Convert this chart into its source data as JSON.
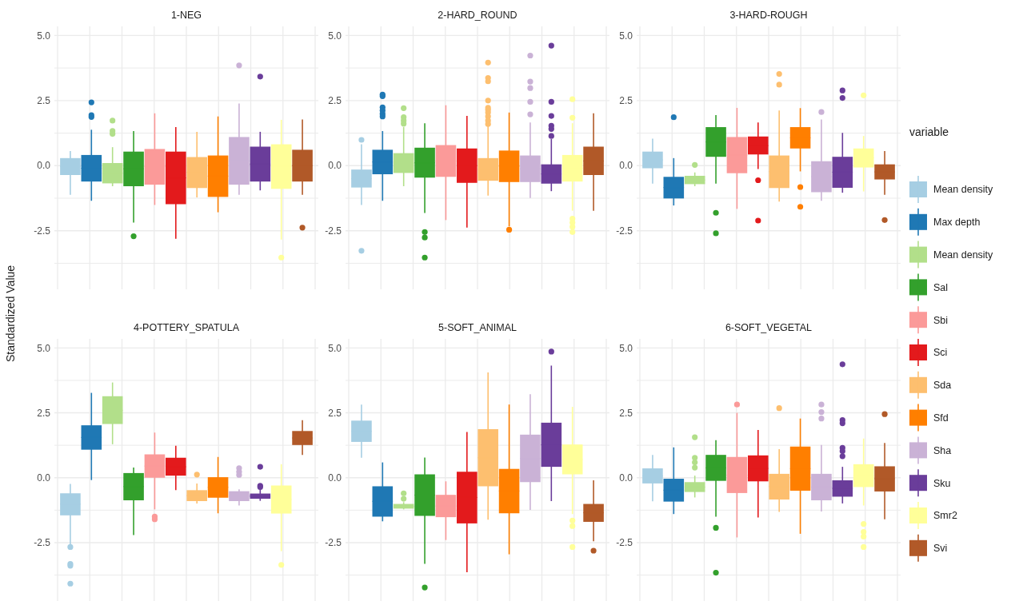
{
  "chart_data": [
    {
      "type": "box",
      "title": "1-NEG",
      "ylabel": "Standardized Value",
      "categories": [
        null
      ],
      "ylim": [
        -4.75,
        5.35
      ],
      "yticks": [
        {
          "value": -3.75,
          "label": null
        },
        {
          "value": -2.5,
          "label": "-2.5"
        },
        {
          "value": -1.25,
          "label": null
        },
        {
          "value": 0,
          "label": "0.0"
        },
        {
          "value": 1.25,
          "label": null
        },
        {
          "value": 2.5,
          "label": "2.5"
        },
        {
          "value": 3.75,
          "label": null
        },
        {
          "value": 5,
          "label": "5.0"
        }
      ],
      "grid": true,
      "tick_labels": "y",
      "legend": "right",
      "legend_title": "variable",
      "series": [
        {
          "name": "Mean density",
          "color": "#a6cee3",
          "boxes": [
            {
              "low": -1.12,
              "q1": -0.36,
              "median": -0.03,
              "q3": 0.29,
              "high": 0.56
            }
          ]
        },
        {
          "name": "Max depth",
          "color": "#1f78b4",
          "boxes": [
            {
              "low": -1.35,
              "q1": -0.61,
              "median": -0.1,
              "q3": 0.41,
              "high": 1.38,
              "outliers": [
                2.43,
                1.94,
                1.87
              ]
            }
          ]
        },
        {
          "name": "Mean density",
          "color": "#b2df8a",
          "boxes": [
            {
              "low": -0.79,
              "q1": -0.68,
              "median": -0.29,
              "q3": 0.1,
              "high": 0.71,
              "outliers": [
                1.73,
                1.33,
                1.22
              ]
            }
          ]
        },
        {
          "name": "Sal",
          "color": "#33a02c",
          "boxes": [
            {
              "low": -2.19,
              "q1": -0.79,
              "median": -0.12,
              "q3": 0.54,
              "high": 1.33,
              "outliers": [
                -2.71
              ]
            }
          ]
        },
        {
          "name": "Sbi",
          "color": "#fb9a99",
          "boxes": [
            {
              "low": -1.51,
              "q1": -0.73,
              "median": -0.04,
              "q3": 0.64,
              "high": 2.01
            }
          ]
        },
        {
          "name": "Sci",
          "color": "#e31a1c",
          "boxes": [
            {
              "low": -2.81,
              "q1": -1.48,
              "median": -0.47,
              "q3": 0.54,
              "high": 1.48
            }
          ]
        },
        {
          "name": "Sda",
          "color": "#fdbf6f",
          "boxes": [
            {
              "low": -1.22,
              "q1": -0.86,
              "median": -0.26,
              "q3": 0.33,
              "high": 1.3
            }
          ]
        },
        {
          "name": "Sfd",
          "color": "#ff7f00",
          "boxes": [
            {
              "low": -1.79,
              "q1": -1.2,
              "median": -0.4,
              "q3": 0.39,
              "high": 1.89
            }
          ]
        },
        {
          "name": "Sha",
          "color": "#cab2d6",
          "boxes": [
            {
              "low": -1.12,
              "q1": -0.73,
              "median": 0.18,
              "q3": 1.1,
              "high": 2.39,
              "outliers": [
                3.85
              ]
            }
          ]
        },
        {
          "name": "Sku",
          "color": "#6a3d9a",
          "boxes": [
            {
              "low": -0.95,
              "q1": -0.61,
              "median": 0.06,
              "q3": 0.73,
              "high": 1.3,
              "outliers": [
                3.42
              ]
            }
          ]
        },
        {
          "name": "Smr2",
          "color": "#ffff99",
          "boxes": [
            {
              "low": -2.84,
              "q1": -0.89,
              "median": -0.03,
              "q3": 0.82,
              "high": 1.76,
              "outliers": [
                -3.53
              ]
            }
          ]
        },
        {
          "name": "Svi",
          "color": "#b15928",
          "boxes": [
            {
              "low": -1.12,
              "q1": -0.61,
              "median": 0,
              "q3": 0.61,
              "high": 1.77,
              "outliers": [
                -2.38
              ]
            }
          ]
        }
      ]
    },
    {
      "type": "box",
      "title": "2-HARD_ROUND",
      "categories": [
        null
      ],
      "ylim": [
        -4.75,
        5.35
      ],
      "yticks": [
        {
          "value": -3.75,
          "label": null
        },
        {
          "value": -2.5,
          "label": "-2.5"
        },
        {
          "value": -1.25,
          "label": null
        },
        {
          "value": 0,
          "label": "0.0"
        },
        {
          "value": 1.25,
          "label": null
        },
        {
          "value": 2.5,
          "label": "2.5"
        },
        {
          "value": 3.75,
          "label": null
        },
        {
          "value": 5,
          "label": "5.0"
        }
      ],
      "grid": true,
      "tick_labels": "y",
      "series": [
        {
          "color": "#a6cee3",
          "boxes": [
            {
              "low": -1.51,
              "q1": -0.84,
              "median": -0.5,
              "q3": -0.15,
              "high": 0.82,
              "outliers": [
                0.99,
                -3.27
              ]
            }
          ]
        },
        {
          "color": "#1f78b4",
          "boxes": [
            {
              "low": -1.35,
              "q1": -0.33,
              "median": 0.14,
              "q3": 0.61,
              "high": 1.33,
              "outliers": [
                2.73,
                2.67,
                2.24,
                2.12,
                1.99,
                1.89
              ]
            }
          ]
        },
        {
          "color": "#b2df8a",
          "boxes": [
            {
              "low": -0.79,
              "q1": -0.28,
              "median": 0.1,
              "q3": 0.48,
              "high": 1.48,
              "outliers": [
                2.21,
                1.86,
                1.73,
                1.61
              ]
            }
          ]
        },
        {
          "color": "#33a02c",
          "boxes": [
            {
              "low": -1.82,
              "q1": -0.46,
              "median": 0.11,
              "q3": 0.69,
              "high": 1.63,
              "outliers": [
                -2.55,
                -2.76,
                -3.53
              ]
            }
          ]
        },
        {
          "color": "#fb9a99",
          "boxes": [
            {
              "low": -2.09,
              "q1": -0.43,
              "median": 0.18,
              "q3": 0.79,
              "high": 2.32
            }
          ]
        },
        {
          "color": "#e31a1c",
          "boxes": [
            {
              "low": -2.38,
              "q1": -0.66,
              "median": 0,
              "q3": 0.66,
              "high": 1.91
            }
          ]
        },
        {
          "color": "#fdbf6f",
          "boxes": [
            {
              "low": -1.15,
              "q1": -0.58,
              "median": -0.14,
              "q3": 0.29,
              "high": 1.53,
              "outliers": [
                3.96,
                3.37,
                3.24,
                2.5,
                2.22,
                2.14,
                2.04,
                1.89,
                1.73,
                1.6
              ]
            }
          ]
        },
        {
          "color": "#ff7f00",
          "boxes": [
            {
              "low": -2.33,
              "q1": -0.63,
              "median": -0.02,
              "q3": 0.58,
              "high": 2.04,
              "outliers": [
                -2.46
              ]
            }
          ]
        },
        {
          "color": "#cab2d6",
          "boxes": [
            {
              "low": -1.24,
              "q1": -0.63,
              "median": -0.12,
              "q3": 0.39,
              "high": 1.66,
              "outliers": [
                4.23,
                3.23,
                2.98,
                2.45,
                1.97
              ]
            }
          ]
        },
        {
          "color": "#6a3d9a",
          "boxes": [
            {
              "low": -0.98,
              "q1": -0.69,
              "median": -0.32,
              "q3": 0.05,
              "high": 1.02,
              "outliers": [
                4.61,
                2.45,
                1.91,
                1.53,
                1.41,
                1.14
              ]
            }
          ]
        },
        {
          "color": "#ffff99",
          "boxes": [
            {
              "low": -1.73,
              "q1": -0.61,
              "median": -0.1,
              "q3": 0.41,
              "high": 1.63,
              "outliers": [
                2.55,
                1.84,
                -2.04,
                -2.19,
                -2.35,
                -2.55
              ]
            }
          ]
        },
        {
          "color": "#b15928",
          "boxes": [
            {
              "low": -1.73,
              "q1": -0.36,
              "median": 0.18,
              "q3": 0.73,
              "high": 2.01
            }
          ]
        }
      ]
    },
    {
      "type": "box",
      "title": "3-HARD-ROUGH",
      "categories": [
        null
      ],
      "ylim": [
        -4.75,
        5.35
      ],
      "yticks": [
        {
          "value": -3.75,
          "label": null
        },
        {
          "value": -2.5,
          "label": "-2.5"
        },
        {
          "value": -1.25,
          "label": null
        },
        {
          "value": 0,
          "label": "0.0"
        },
        {
          "value": 1.25,
          "label": null
        },
        {
          "value": 2.5,
          "label": "2.5"
        },
        {
          "value": 3.75,
          "label": null
        },
        {
          "value": 5,
          "label": "5.0"
        }
      ],
      "grid": true,
      "tick_labels": "y",
      "series": [
        {
          "color": "#a6cee3",
          "boxes": [
            {
              "low": -0.69,
              "q1": -0.1,
              "median": 0.22,
              "q3": 0.54,
              "high": 1.04
            }
          ]
        },
        {
          "color": "#1f78b4",
          "boxes": [
            {
              "low": -1.53,
              "q1": -1.26,
              "median": -0.84,
              "q3": -0.43,
              "high": 0.29,
              "outliers": [
                1.86
              ]
            }
          ]
        },
        {
          "color": "#b2df8a",
          "boxes": [
            {
              "low": -0.79,
              "q1": -0.71,
              "median": -0.55,
              "q3": -0.39,
              "high": -0.26,
              "outliers": [
                0.03
              ]
            }
          ]
        },
        {
          "color": "#33a02c",
          "boxes": [
            {
              "low": -0.69,
              "q1": 0.34,
              "median": 0.91,
              "q3": 1.48,
              "high": 1.94,
              "outliers": [
                -1.81,
                -2.6
              ]
            }
          ]
        },
        {
          "color": "#fb9a99",
          "boxes": [
            {
              "low": -1.66,
              "q1": -0.29,
              "median": 0.4,
              "q3": 1.1,
              "high": 2.22
            }
          ]
        },
        {
          "color": "#e31a1c",
          "boxes": [
            {
              "low": -0.13,
              "q1": 0.43,
              "median": 0.77,
              "q3": 1.12,
              "high": 1.66,
              "outliers": [
                -0.56,
                -2.11
              ]
            }
          ]
        },
        {
          "color": "#fdbf6f",
          "boxes": [
            {
              "low": -1.38,
              "q1": -0.86,
              "median": -0.23,
              "q3": 0.39,
              "high": 2.12,
              "outliers": [
                3.52,
                3.11
              ]
            }
          ]
        },
        {
          "color": "#ff7f00",
          "boxes": [
            {
              "low": -0.22,
              "q1": 0.66,
              "median": 1.07,
              "q3": 1.48,
              "high": 2.21,
              "outliers": [
                -0.82,
                -1.58
              ]
            }
          ]
        },
        {
          "color": "#cab2d6",
          "boxes": [
            {
              "low": -1.35,
              "q1": -1.02,
              "median": -0.42,
              "q3": 0.17,
              "high": 1.77,
              "outliers": [
                2.06
              ]
            }
          ]
        },
        {
          "color": "#6a3d9a",
          "boxes": [
            {
              "low": -1.04,
              "q1": -0.85,
              "median": -0.25,
              "q3": 0.34,
              "high": 1.26,
              "outliers": [
                2.89,
                2.6
              ]
            }
          ]
        },
        {
          "color": "#ffff99",
          "boxes": [
            {
              "low": -0.99,
              "q1": -0.07,
              "median": 0.3,
              "q3": 0.66,
              "high": 1.14,
              "outliers": [
                2.7
              ]
            }
          ]
        },
        {
          "color": "#b15928",
          "boxes": [
            {
              "low": -1.12,
              "q1": -0.53,
              "median": -0.24,
              "q3": 0.05,
              "high": 0.56,
              "outliers": [
                -2.09
              ]
            }
          ]
        }
      ]
    },
    {
      "type": "box",
      "title": "4-POTTERY_SPATULA",
      "categories": [
        null
      ],
      "ylim": [
        -4.75,
        5.35
      ],
      "yticks": [
        {
          "value": -3.75,
          "label": null
        },
        {
          "value": -2.5,
          "label": "-2.5"
        },
        {
          "value": -1.25,
          "label": null
        },
        {
          "value": 0,
          "label": "0.0"
        },
        {
          "value": 1.25,
          "label": null
        },
        {
          "value": 2.5,
          "label": "2.5"
        },
        {
          "value": 3.75,
          "label": null
        },
        {
          "value": 5,
          "label": "5.0"
        }
      ],
      "grid": true,
      "tick_labels": "y",
      "series": [
        {
          "color": "#a6cee3",
          "boxes": [
            {
              "low": -2.57,
              "q1": -1.45,
              "median": -1.02,
              "q3": -0.6,
              "high": -0.24,
              "outliers": [
                -2.67,
                -3.32,
                -3.39,
                -4.08
              ]
            }
          ]
        },
        {
          "color": "#1f78b4",
          "boxes": [
            {
              "low": -0.09,
              "q1": 1.08,
              "median": 1.55,
              "q3": 2.02,
              "high": 3.27
            }
          ]
        },
        {
          "color": "#b2df8a",
          "boxes": [
            {
              "low": 1.29,
              "q1": 2.07,
              "median": 2.6,
              "q3": 3.14,
              "high": 3.67
            }
          ]
        },
        {
          "color": "#33a02c",
          "boxes": [
            {
              "low": -2.21,
              "q1": -0.87,
              "median": -0.34,
              "q3": 0.18,
              "high": 0.39
            }
          ]
        },
        {
          "color": "#fb9a99",
          "boxes": [
            {
              "low": -1.22,
              "q1": 0,
              "median": 0.45,
              "q3": 0.9,
              "high": 1.74,
              "outliers": [
                -1.5,
                -1.6
              ]
            }
          ]
        },
        {
          "color": "#e31a1c",
          "boxes": [
            {
              "low": -0.48,
              "q1": 0.08,
              "median": 0.42,
              "q3": 0.77,
              "high": 1.23
            }
          ]
        },
        {
          "color": "#fdbf6f",
          "boxes": [
            {
              "low": -0.99,
              "q1": -0.9,
              "median": -0.69,
              "q3": -0.48,
              "high": -0.22,
              "outliers": [
                0.12
              ]
            }
          ]
        },
        {
          "color": "#ff7f00",
          "boxes": [
            {
              "low": -1.37,
              "q1": -0.77,
              "median": -0.37,
              "q3": 0.02,
              "high": 0.8
            }
          ]
        },
        {
          "color": "#cab2d6",
          "boxes": [
            {
              "low": -1.07,
              "q1": -0.9,
              "median": -0.71,
              "q3": -0.52,
              "high": -0.45,
              "outliers": [
                0.37,
                0.23,
                0.11
              ]
            }
          ]
        },
        {
          "color": "#6a3d9a",
          "boxes": [
            {
              "low": -0.89,
              "q1": -0.81,
              "median": -0.71,
              "q3": -0.61,
              "high": -0.45,
              "outliers": [
                0.42,
                -0.31,
                -0.36
              ]
            }
          ]
        },
        {
          "color": "#ffff99",
          "boxes": [
            {
              "low": -2.83,
              "q1": -1.38,
              "median": -0.84,
              "q3": -0.3,
              "high": 0.52,
              "outliers": [
                -3.36
              ]
            }
          ]
        },
        {
          "color": "#b15928",
          "boxes": [
            {
              "low": 0.88,
              "q1": 1.26,
              "median": 1.53,
              "q3": 1.8,
              "high": 2.22
            }
          ]
        }
      ]
    },
    {
      "type": "box",
      "title": "5-SOFT_ANIMAL",
      "categories": [
        null
      ],
      "ylim": [
        -4.75,
        5.35
      ],
      "yticks": [
        {
          "value": -3.75,
          "label": null
        },
        {
          "value": -2.5,
          "label": "-2.5"
        },
        {
          "value": -1.25,
          "label": null
        },
        {
          "value": 0,
          "label": "0.0"
        },
        {
          "value": 1.25,
          "label": null
        },
        {
          "value": 2.5,
          "label": "2.5"
        },
        {
          "value": 3.75,
          "label": null
        },
        {
          "value": 5,
          "label": "5.0"
        }
      ],
      "grid": true,
      "tick_labels": "y",
      "series": [
        {
          "color": "#a6cee3",
          "boxes": [
            {
              "low": 0.77,
              "q1": 1.38,
              "median": 1.79,
              "q3": 2.2,
              "high": 2.82
            }
          ]
        },
        {
          "color": "#1f78b4",
          "boxes": [
            {
              "low": -1.68,
              "q1": -1.5,
              "median": -0.91,
              "q3": -0.33,
              "high": 0.59
            }
          ]
        },
        {
          "color": "#b2df8a",
          "boxes": [
            {
              "low": -1.22,
              "q1": -1.19,
              "median": -1.1,
              "q3": -1.01,
              "high": -0.94,
              "outliers": [
                -0.6,
                -0.81
              ]
            }
          ]
        },
        {
          "color": "#33a02c",
          "boxes": [
            {
              "low": -3.32,
              "q1": -1.47,
              "median": -0.67,
              "q3": 0.13,
              "high": 0.78,
              "outliers": [
                -4.23
              ]
            }
          ]
        },
        {
          "color": "#fb9a99",
          "boxes": [
            {
              "low": -2.4,
              "q1": -1.52,
              "median": -1.09,
              "q3": -0.66,
              "high": -0.14
            }
          ]
        },
        {
          "color": "#e31a1c",
          "boxes": [
            {
              "low": -3.64,
              "q1": -1.76,
              "median": -0.76,
              "q3": 0.23,
              "high": 1.76
            }
          ]
        },
        {
          "color": "#fdbf6f",
          "boxes": [
            {
              "low": -1.62,
              "q1": -0.33,
              "median": 0.77,
              "q3": 1.87,
              "high": 4.06
            }
          ]
        },
        {
          "color": "#ff7f00",
          "boxes": [
            {
              "low": -2.95,
              "q1": -1.37,
              "median": -0.51,
              "q3": 0.34,
              "high": 2.82
            }
          ]
        },
        {
          "color": "#cab2d6",
          "boxes": [
            {
              "low": -1.24,
              "q1": -0.17,
              "median": 0.74,
              "q3": 1.66,
              "high": 3.22
            }
          ]
        },
        {
          "color": "#6a3d9a",
          "boxes": [
            {
              "low": -0.9,
              "q1": 0.42,
              "median": 1.27,
              "q3": 2.12,
              "high": 4.32,
              "outliers": [
                4.86
              ]
            }
          ]
        },
        {
          "color": "#ffff99",
          "boxes": [
            {
              "low": -1.4,
              "q1": 0.13,
              "median": 0.7,
              "q3": 1.28,
              "high": 2.73,
              "outliers": [
                -1.65,
                -1.86,
                -2.67
              ]
            }
          ]
        },
        {
          "color": "#b15928",
          "boxes": [
            {
              "low": -2.45,
              "q1": -1.7,
              "median": -1.35,
              "q3": -1.01,
              "high": -0.1,
              "outliers": [
                -2.81
              ]
            }
          ]
        }
      ]
    },
    {
      "type": "box",
      "title": "6-SOFT_VEGETAL",
      "categories": [
        null
      ],
      "ylim": [
        -4.75,
        5.35
      ],
      "yticks": [
        {
          "value": -3.75,
          "label": null
        },
        {
          "value": -2.5,
          "label": "-2.5"
        },
        {
          "value": -1.25,
          "label": null
        },
        {
          "value": 0,
          "label": "0.0"
        },
        {
          "value": 1.25,
          "label": null
        },
        {
          "value": 2.5,
          "label": "2.5"
        },
        {
          "value": 3.75,
          "label": null
        },
        {
          "value": 5,
          "label": "5.0"
        }
      ],
      "grid": true,
      "tick_labels": "y",
      "series": [
        {
          "color": "#a6cee3",
          "boxes": [
            {
              "low": -0.91,
              "q1": -0.22,
              "median": 0.07,
              "q3": 0.36,
              "high": 0.88
            }
          ]
        },
        {
          "color": "#1f78b4",
          "boxes": [
            {
              "low": -1.4,
              "q1": -0.92,
              "median": -0.48,
              "q3": -0.04,
              "high": 1.17
            }
          ]
        },
        {
          "color": "#b2df8a",
          "boxes": [
            {
              "low": -0.76,
              "q1": -0.55,
              "median": -0.36,
              "q3": -0.17,
              "high": 0.08,
              "outliers": [
                1.56,
                0.77,
                0.59,
                0.39
              ]
            }
          ]
        },
        {
          "color": "#33a02c",
          "boxes": [
            {
              "low": -1.5,
              "q1": -0.12,
              "median": 0.38,
              "q3": 0.88,
              "high": 1.45,
              "outliers": [
                -1.93,
                -3.66
              ]
            }
          ]
        },
        {
          "color": "#fb9a99",
          "boxes": [
            {
              "low": -2.3,
              "q1": -0.59,
              "median": 0.1,
              "q3": 0.8,
              "high": 2.5,
              "outliers": [
                2.82
              ]
            }
          ]
        },
        {
          "color": "#e31a1c",
          "boxes": [
            {
              "low": -1.53,
              "q1": -0.14,
              "median": 0.36,
              "q3": 0.86,
              "high": 1.84
            }
          ]
        },
        {
          "color": "#fdbf6f",
          "boxes": [
            {
              "low": -1.32,
              "q1": -0.84,
              "median": -0.34,
              "q3": 0.15,
              "high": 1.1,
              "outliers": [
                2.68
              ]
            }
          ]
        },
        {
          "color": "#ff7f00",
          "boxes": [
            {
              "low": -2.16,
              "q1": -0.5,
              "median": 0.35,
              "q3": 1.2,
              "high": 2.28
            }
          ]
        },
        {
          "color": "#cab2d6",
          "boxes": [
            {
              "low": -1.3,
              "q1": -0.87,
              "median": -0.36,
              "q3": 0.15,
              "high": 1.26,
              "outliers": [
                2.82,
                2.53,
                2.28
              ]
            }
          ]
        },
        {
          "color": "#6a3d9a",
          "boxes": [
            {
              "low": -0.99,
              "q1": -0.73,
              "median": -0.41,
              "q3": -0.1,
              "high": 0.42,
              "outliers": [
                4.37,
                2.22,
                2.1,
                1.15,
                1.02,
                0.83
              ]
            }
          ]
        },
        {
          "color": "#ffff99",
          "boxes": [
            {
              "low": -1.07,
              "q1": -0.36,
              "median": 0.08,
              "q3": 0.52,
              "high": 1.51,
              "outliers": [
                -1.78,
                -2.09,
                -2.27,
                -2.67
              ]
            }
          ]
        },
        {
          "color": "#b15928",
          "boxes": [
            {
              "low": -1.6,
              "q1": -0.53,
              "median": -0.04,
              "q3": 0.44,
              "high": 1.34,
              "outliers": [
                2.45
              ]
            }
          ]
        }
      ]
    }
  ]
}
